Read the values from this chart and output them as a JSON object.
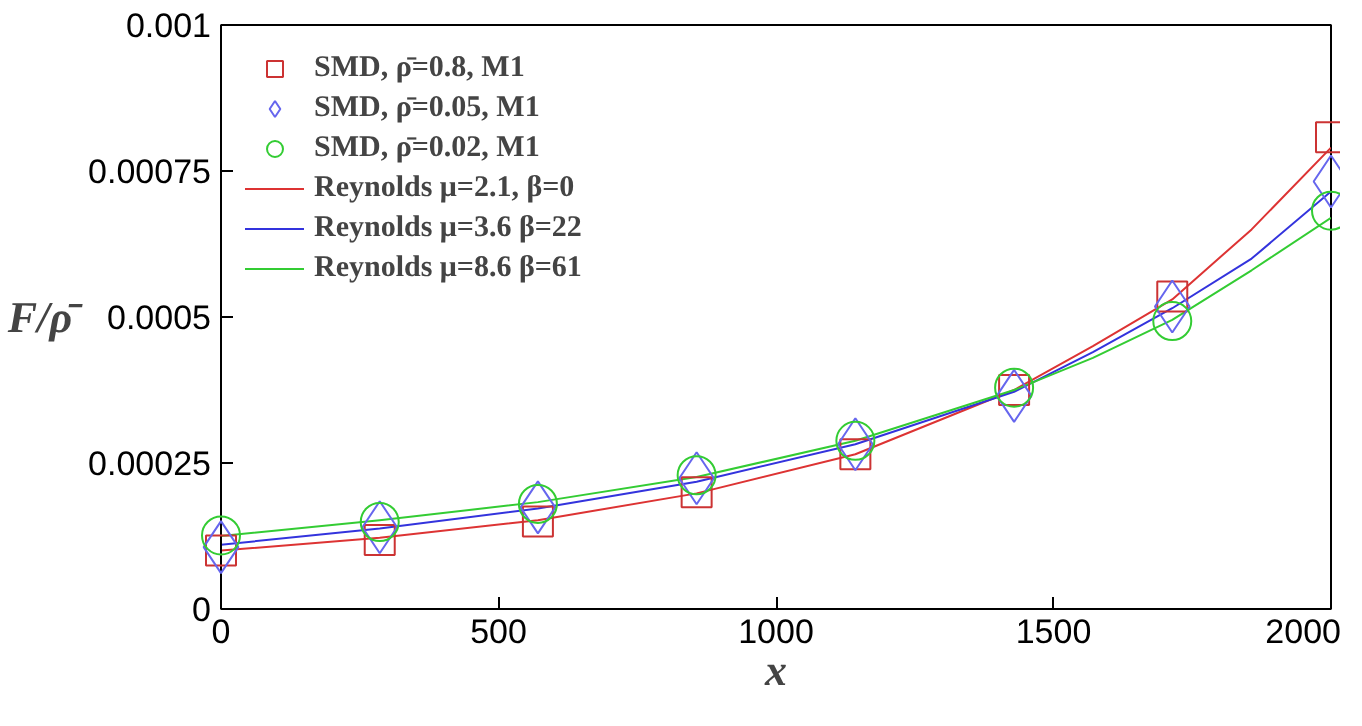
{
  "chart_data": {
    "type": "scatter",
    "xlabel": "x",
    "ylabel": "F/ρ̄",
    "xlim": [
      0,
      2000
    ],
    "ylim": [
      0,
      0.001
    ],
    "xticks": [
      0,
      500,
      1000,
      1500,
      2000
    ],
    "yticks": [
      0,
      0.00025,
      0.0005,
      0.00075,
      0.001
    ],
    "grid": false,
    "legend": "top left",
    "series": [
      {
        "name": "SMD, ρ̄=0.8, M1",
        "marker": "square",
        "color": "#cc3333",
        "x": [
          0,
          286,
          571,
          857,
          1143,
          1429,
          1714,
          2000
        ],
        "values": [
          0.0001,
          0.000118,
          0.00015,
          0.0002,
          0.000265,
          0.000375,
          0.000535,
          0.000808
        ]
      },
      {
        "name": "SMD, ρ̄=0.05, M1",
        "marker": "diamond",
        "color": "#6666ee",
        "x": [
          0,
          286,
          571,
          857,
          1143,
          1429,
          1714,
          2000
        ],
        "values": [
          0.000106,
          0.00014,
          0.000174,
          0.000224,
          0.000282,
          0.000365,
          0.000518,
          0.000732
        ]
      },
      {
        "name": "SMD, ρ̄=0.02, M1",
        "marker": "circle",
        "color": "#33cc33",
        "x": [
          0,
          286,
          571,
          857,
          1143,
          1429,
          1714,
          2000
        ],
        "values": [
          0.000126,
          0.000149,
          0.00018,
          0.000229,
          0.000288,
          0.000379,
          0.000493,
          0.000682
        ]
      },
      {
        "name": "Reynolds μ=2.1, β=0",
        "type": "line",
        "marker": "none",
        "color": "#dd3333",
        "x": [
          0,
          286,
          571,
          857,
          1143,
          1429,
          1571,
          1714,
          1857,
          2000
        ],
        "values": [
          0.0001,
          0.000122,
          0.000152,
          0.000198,
          0.000265,
          0.000375,
          0.00045,
          0.00053,
          0.00065,
          0.00079
        ]
      },
      {
        "name": "Reynolds μ=3.6 β=22",
        "type": "line",
        "marker": "none",
        "color": "#3333dd",
        "x": [
          0,
          286,
          571,
          857,
          1143,
          1429,
          1571,
          1714,
          1857,
          2000
        ],
        "values": [
          0.00011,
          0.000138,
          0.000172,
          0.000218,
          0.000282,
          0.000372,
          0.00044,
          0.000515,
          0.0006,
          0.000715
        ]
      },
      {
        "name": "Reynolds μ=8.6 β=61",
        "type": "line",
        "marker": "none",
        "color": "#33cc33",
        "x": [
          0,
          286,
          571,
          857,
          1143,
          1429,
          1571,
          1714,
          1857,
          2000
        ],
        "values": [
          0.000125,
          0.000152,
          0.000183,
          0.000226,
          0.000288,
          0.000375,
          0.00043,
          0.000495,
          0.00058,
          0.00067
        ]
      }
    ]
  }
}
